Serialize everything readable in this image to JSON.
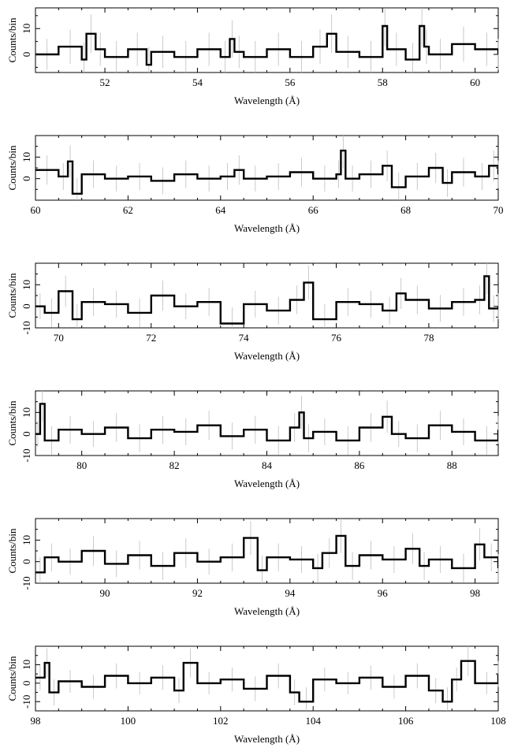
{
  "chart_data": [
    {
      "type": "step",
      "xlabel": "Wavelength (Å)",
      "ylabel": "Counts/bin",
      "xlim": [
        50.5,
        60.5
      ],
      "ylim": [
        -7,
        18
      ],
      "xticks": [
        52,
        54,
        56,
        58,
        60
      ],
      "yticks": [
        0,
        10
      ],
      "series": [
        {
          "values": [
            [
              50.5,
              0
            ],
            [
              51.0,
              3
            ],
            [
              51.5,
              -2
            ],
            [
              51.6,
              8
            ],
            [
              51.8,
              2
            ],
            [
              52.0,
              -1
            ],
            [
              52.5,
              2
            ],
            [
              52.9,
              -4
            ],
            [
              53.0,
              1
            ],
            [
              53.5,
              -1
            ],
            [
              54.0,
              2
            ],
            [
              54.5,
              -1
            ],
            [
              54.7,
              6
            ],
            [
              54.8,
              1
            ],
            [
              55.0,
              -1
            ],
            [
              55.5,
              2
            ],
            [
              56.0,
              -1
            ],
            [
              56.5,
              3
            ],
            [
              56.8,
              8
            ],
            [
              57.0,
              1
            ],
            [
              57.5,
              -1
            ],
            [
              58.0,
              11
            ],
            [
              58.1,
              2
            ],
            [
              58.5,
              -2
            ],
            [
              58.8,
              11
            ],
            [
              58.9,
              3
            ],
            [
              59.0,
              0
            ],
            [
              59.5,
              4
            ],
            [
              60.0,
              2
            ],
            [
              60.5,
              0
            ]
          ]
        }
      ]
    },
    {
      "type": "step",
      "xlabel": "Wavelength (Å)",
      "ylabel": "Counts/bin",
      "xlim": [
        60,
        70
      ],
      "ylim": [
        -10,
        20
      ],
      "xticks": [
        60,
        62,
        64,
        66,
        68,
        70
      ],
      "yticks": [
        0,
        10
      ],
      "series": [
        {
          "values": [
            [
              60.0,
              4
            ],
            [
              60.5,
              1
            ],
            [
              60.7,
              8
            ],
            [
              60.8,
              -7
            ],
            [
              61.0,
              2
            ],
            [
              61.5,
              0
            ],
            [
              62.0,
              1
            ],
            [
              62.5,
              -1
            ],
            [
              63.0,
              2
            ],
            [
              63.5,
              0
            ],
            [
              64.0,
              1
            ],
            [
              64.3,
              4
            ],
            [
              64.5,
              0
            ],
            [
              65.0,
              1
            ],
            [
              65.5,
              3
            ],
            [
              66.0,
              0
            ],
            [
              66.5,
              2
            ],
            [
              66.6,
              13
            ],
            [
              66.7,
              0
            ],
            [
              67.0,
              2
            ],
            [
              67.5,
              6
            ],
            [
              67.7,
              -4
            ],
            [
              68.0,
              1
            ],
            [
              68.5,
              5
            ],
            [
              68.8,
              -2
            ],
            [
              69.0,
              3
            ],
            [
              69.5,
              1
            ],
            [
              69.8,
              6
            ],
            [
              70.0,
              2
            ]
          ]
        }
      ]
    },
    {
      "type": "step",
      "xlabel": "Wavelength (Å)",
      "ylabel": "Counts/bin",
      "xlim": [
        69.5,
        79.5
      ],
      "ylim": [
        -10,
        20
      ],
      "xticks": [
        70,
        72,
        74,
        76,
        78
      ],
      "yticks": [
        -10,
        0,
        10
      ],
      "series": [
        {
          "values": [
            [
              69.5,
              0
            ],
            [
              69.7,
              -3
            ],
            [
              70.0,
              7
            ],
            [
              70.3,
              -6
            ],
            [
              70.5,
              2
            ],
            [
              71.0,
              1
            ],
            [
              71.5,
              -3
            ],
            [
              72.0,
              5
            ],
            [
              72.5,
              0
            ],
            [
              73.0,
              2
            ],
            [
              73.5,
              -8
            ],
            [
              74.0,
              1
            ],
            [
              74.5,
              -2
            ],
            [
              75.0,
              3
            ],
            [
              75.3,
              11
            ],
            [
              75.5,
              -6
            ],
            [
              76.0,
              2
            ],
            [
              76.5,
              1
            ],
            [
              77.0,
              -2
            ],
            [
              77.3,
              6
            ],
            [
              77.5,
              3
            ],
            [
              78.0,
              -1
            ],
            [
              78.5,
              2
            ],
            [
              79.0,
              3
            ],
            [
              79.2,
              14
            ],
            [
              79.3,
              -1
            ],
            [
              79.5,
              0
            ]
          ]
        }
      ]
    },
    {
      "type": "step",
      "xlabel": "Wavelength (Å)",
      "ylabel": "Counts/bin",
      "xlim": [
        79,
        89
      ],
      "ylim": [
        -10,
        20
      ],
      "xticks": [
        80,
        82,
        84,
        86,
        88
      ],
      "yticks": [
        -10,
        0,
        10
      ],
      "series": [
        {
          "values": [
            [
              79.0,
              0
            ],
            [
              79.1,
              14
            ],
            [
              79.2,
              -3
            ],
            [
              79.5,
              2
            ],
            [
              80.0,
              0
            ],
            [
              80.5,
              3
            ],
            [
              81.0,
              -2
            ],
            [
              81.5,
              2
            ],
            [
              82.0,
              1
            ],
            [
              82.5,
              4
            ],
            [
              83.0,
              -1
            ],
            [
              83.5,
              2
            ],
            [
              84.0,
              -3
            ],
            [
              84.5,
              3
            ],
            [
              84.7,
              10
            ],
            [
              84.8,
              -2
            ],
            [
              85.0,
              1
            ],
            [
              85.5,
              -3
            ],
            [
              86.0,
              3
            ],
            [
              86.5,
              8
            ],
            [
              86.7,
              0
            ],
            [
              87.0,
              -2
            ],
            [
              87.5,
              4
            ],
            [
              88.0,
              1
            ],
            [
              88.5,
              -3
            ],
            [
              89.0,
              2
            ]
          ]
        }
      ]
    },
    {
      "type": "step",
      "xlabel": "Wavelength (Å)",
      "ylabel": "Counts/bin",
      "xlim": [
        88.5,
        98.5
      ],
      "ylim": [
        -10,
        20
      ],
      "xticks": [
        90,
        92,
        94,
        96,
        98
      ],
      "yticks": [
        -10,
        0,
        10
      ],
      "series": [
        {
          "values": [
            [
              88.5,
              -5
            ],
            [
              88.7,
              2
            ],
            [
              89.0,
              0
            ],
            [
              89.5,
              5
            ],
            [
              90.0,
              -1
            ],
            [
              90.5,
              3
            ],
            [
              91.0,
              -2
            ],
            [
              91.5,
              4
            ],
            [
              92.0,
              0
            ],
            [
              92.5,
              2
            ],
            [
              93.0,
              11
            ],
            [
              93.3,
              -4
            ],
            [
              93.5,
              2
            ],
            [
              94.0,
              1
            ],
            [
              94.5,
              -3
            ],
            [
              94.7,
              4
            ],
            [
              95.0,
              12
            ],
            [
              95.2,
              -2
            ],
            [
              95.5,
              3
            ],
            [
              96.0,
              1
            ],
            [
              96.5,
              6
            ],
            [
              96.8,
              -2
            ],
            [
              97.0,
              1
            ],
            [
              97.5,
              -3
            ],
            [
              98.0,
              8
            ],
            [
              98.2,
              2
            ],
            [
              98.5,
              -3
            ]
          ]
        }
      ]
    },
    {
      "type": "step",
      "xlabel": "Wavelength (Å)",
      "ylabel": "Counts/bin",
      "xlim": [
        98,
        108
      ],
      "ylim": [
        -15,
        20
      ],
      "xticks": [
        98,
        100,
        102,
        104,
        106,
        108
      ],
      "yticks": [
        -10,
        0,
        10
      ],
      "series": [
        {
          "values": [
            [
              98.0,
              3
            ],
            [
              98.2,
              11
            ],
            [
              98.3,
              -5
            ],
            [
              98.5,
              1
            ],
            [
              99.0,
              -2
            ],
            [
              99.5,
              4
            ],
            [
              100.0,
              0
            ],
            [
              100.5,
              3
            ],
            [
              101.0,
              -4
            ],
            [
              101.2,
              11
            ],
            [
              101.5,
              0
            ],
            [
              102.0,
              2
            ],
            [
              102.5,
              -3
            ],
            [
              103.0,
              4
            ],
            [
              103.5,
              -5
            ],
            [
              103.7,
              -10
            ],
            [
              104.0,
              2
            ],
            [
              104.5,
              0
            ],
            [
              105.0,
              3
            ],
            [
              105.5,
              -2
            ],
            [
              106.0,
              4
            ],
            [
              106.5,
              -4
            ],
            [
              106.8,
              -10
            ],
            [
              107.0,
              2
            ],
            [
              107.2,
              12
            ],
            [
              107.5,
              0
            ],
            [
              108.0,
              5
            ]
          ]
        }
      ]
    }
  ]
}
